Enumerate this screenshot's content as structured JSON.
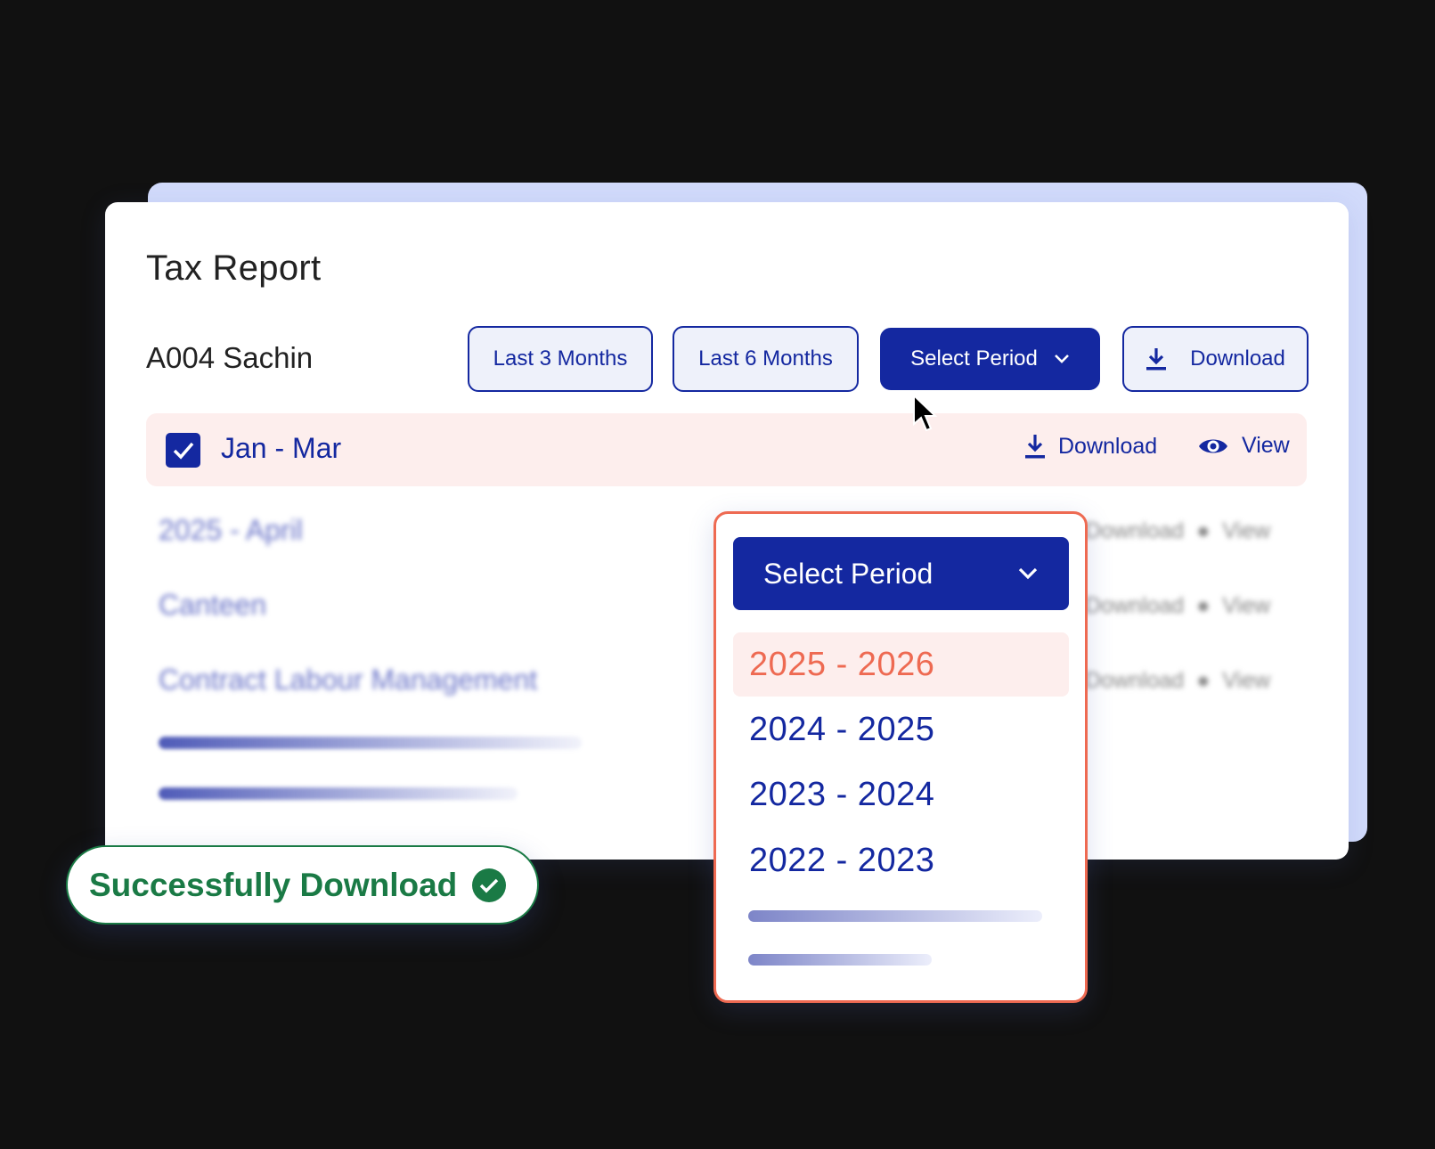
{
  "card": {
    "title": "Tax Report",
    "employee": "A004 Sachin"
  },
  "filters": {
    "last3": "Last 3 Months",
    "last6": "Last 6 Months",
    "select_period": "Select Period",
    "download": "Download"
  },
  "selected_row": {
    "label": "Jan - Mar",
    "checked": true,
    "download": "Download",
    "view": "View"
  },
  "blurred_rows": [
    {
      "label": "2025 - April",
      "download": "Download",
      "view": "View"
    },
    {
      "label": "Canteen",
      "download": "Download",
      "view": "View"
    },
    {
      "label": "Contract Labour Management",
      "download": "Download",
      "view": "View"
    }
  ],
  "dropdown": {
    "button": "Select Period",
    "options": [
      "2025 - 2026",
      "2024 - 2025",
      "2023 - 2024",
      "2022 - 2023"
    ],
    "selected": "2025 - 2026"
  },
  "toast": {
    "message": "Successfully Download",
    "icon": "check-circle-icon"
  },
  "colors": {
    "primary": "#1428a0",
    "accent": "#ee6a52",
    "success": "#1a7a45",
    "highlight": "#fdeeed"
  }
}
